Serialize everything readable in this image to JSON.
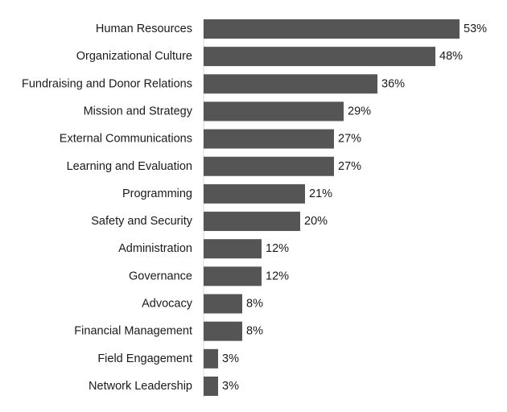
{
  "chart_data": {
    "type": "bar",
    "orientation": "horizontal",
    "categories": [
      "Human Resources",
      "Organizational Culture",
      "Fundraising and Donor Relations",
      "Mission and Strategy",
      "External Communications",
      "Learning and Evaluation",
      "Programming",
      "Safety and Security",
      "Administration",
      "Governance",
      "Advocacy",
      "Financial Management",
      "Field Engagement",
      "Network Leadership"
    ],
    "values": [
      53,
      48,
      36,
      29,
      27,
      27,
      21,
      20,
      12,
      12,
      8,
      8,
      3,
      3
    ],
    "value_labels": [
      "53%",
      "48%",
      "36%",
      "29%",
      "27%",
      "27%",
      "21%",
      "20%",
      "12%",
      "12%",
      "8%",
      "8%",
      "3%",
      "3%"
    ],
    "title": "",
    "xlabel": "",
    "ylabel": "",
    "xlim": [
      0,
      53
    ],
    "grid": false,
    "legend": "none",
    "bar_color": "#555555"
  }
}
